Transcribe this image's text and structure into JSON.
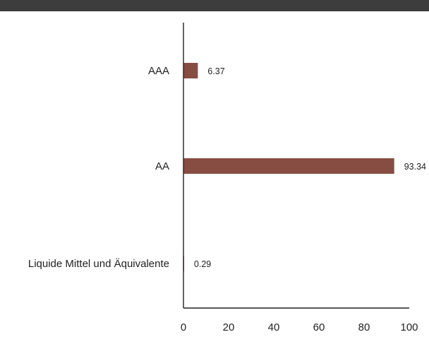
{
  "chart_data": {
    "type": "bar",
    "orientation": "horizontal",
    "categories": [
      "AAA",
      "AA",
      "Liquide Mittel und Äquivalente"
    ],
    "values": [
      6.37,
      93.34,
      0.29
    ],
    "value_labels": [
      "6.37",
      "93.34",
      "0.29"
    ],
    "xlim": [
      0,
      100
    ],
    "xticks": [
      "0",
      "20",
      "40",
      "60",
      "80",
      "100"
    ],
    "grid": false,
    "legend": "none",
    "colors": {
      "bar": "#874d42",
      "axis": "#222222",
      "top_rule": "#3d3d3d"
    }
  }
}
